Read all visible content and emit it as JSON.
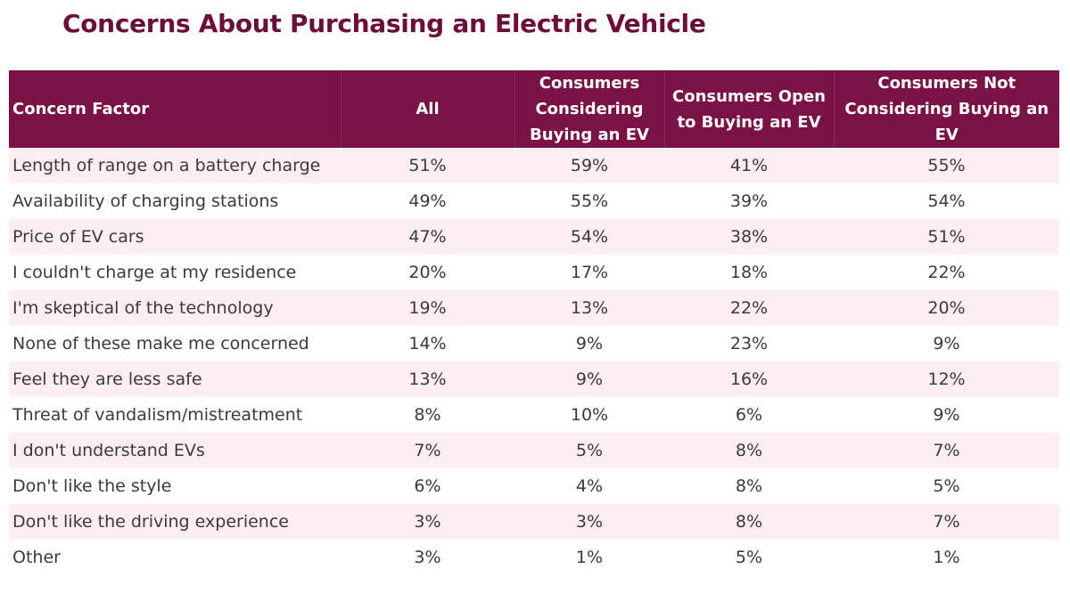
{
  "title": "Concerns About Purchasing an Electric Vehicle",
  "chart_data": {
    "type": "table",
    "title": "Concerns About Purchasing an Electric Vehicle",
    "columns": [
      "Concern Factor",
      "All",
      "Consumers Considering Buying an EV",
      "Consumers Open to Buying an EV",
      "Consumers Not Considering Buying  an EV"
    ],
    "rows": [
      [
        "Length of range on a battery charge",
        "51%",
        "59%",
        "41%",
        "55%"
      ],
      [
        "Availability of charging stations",
        "49%",
        "55%",
        "39%",
        "54%"
      ],
      [
        "Price of EV cars",
        "47%",
        "54%",
        "38%",
        "51%"
      ],
      [
        "I couldn't charge at my residence",
        "20%",
        "17%",
        "18%",
        "22%"
      ],
      [
        "I'm skeptical of the technology",
        "19%",
        "13%",
        "22%",
        "20%"
      ],
      [
        "None of these make me concerned",
        "14%",
        "9%",
        "23%",
        "9%"
      ],
      [
        "Feel they are less safe",
        "13%",
        "9%",
        "16%",
        "12%"
      ],
      [
        "Threat of vandalism/mistreatment",
        "8%",
        "10%",
        "6%",
        "9%"
      ],
      [
        "I don't understand EVs",
        "7%",
        "5%",
        "8%",
        "7%"
      ],
      [
        "Don't like the style",
        "6%",
        "4%",
        "8%",
        "5%"
      ],
      [
        "Don't like the driving experience",
        "3%",
        "3%",
        "8%",
        "7%"
      ],
      [
        "Other",
        "3%",
        "1%",
        "5%",
        "1%"
      ]
    ]
  }
}
